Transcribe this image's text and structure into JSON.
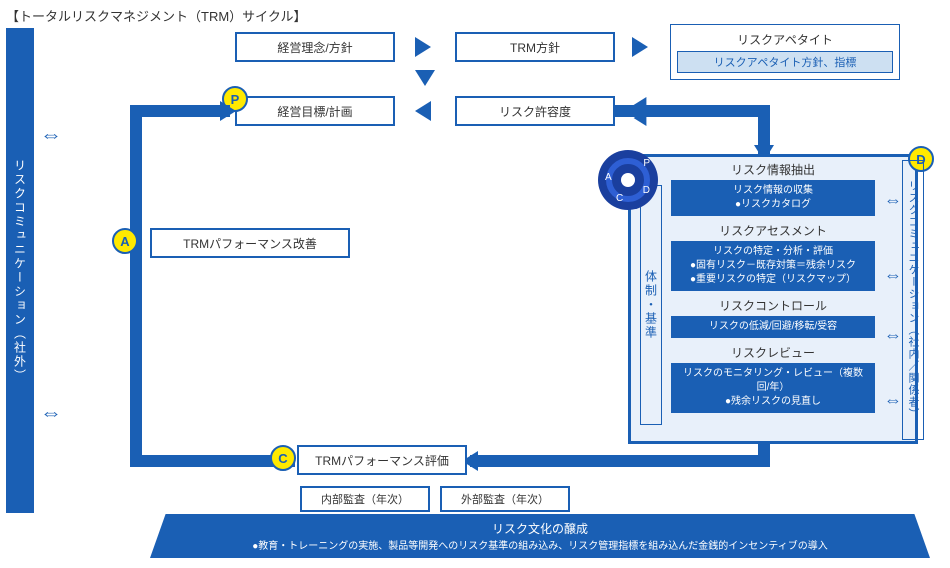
{
  "title": "【トータルリスクマネジメント（TRM）サイクル】",
  "leftBar": "リスクコミュニケーション（社外）",
  "rightBar": "リスクコミュニケーション（社内／関係者）",
  "taisei": "体制・基準",
  "top": {
    "rinenLabel": "経営理念/方針",
    "trmPolicy": "TRM方針",
    "appetiteTitle": "リスクアペタイト",
    "appetiteSub": "リスクアペタイト方針、指標",
    "keieiMokuhyo": "経営目標/計画",
    "riskAllowance": "リスク許容度"
  },
  "a": {
    "label": "A",
    "box": "TRMパフォーマンス改善"
  },
  "c": {
    "label": "C",
    "box": "TRMパフォーマンス評価"
  },
  "p": {
    "label": "P"
  },
  "d": {
    "label": "D"
  },
  "dSection": {
    "s1": {
      "title": "リスク情報抽出",
      "detail": "リスク情報の収集\n●リスクカタログ"
    },
    "s2": {
      "title": "リスクアセスメント",
      "detail": "リスクの特定・分析・評価\n●固有リスク－既存対策＝残余リスク\n●重要リスクの特定（リスクマップ）"
    },
    "s3": {
      "title": "リスクコントロール",
      "detail": "リスクの低減/回避/移転/受容"
    },
    "s4": {
      "title": "リスクレビュー",
      "detail": "リスクのモニタリング・レビュー（複数回/年）\n●残余リスクの見直し"
    }
  },
  "audit": {
    "internal": "内部監査（年次）",
    "external": "外部監査（年次）"
  },
  "bottom": {
    "title": "リスク文化の醸成",
    "detail": "●教育・トレーニングの実施、製品等開発へのリスク基準の組み込み、リスク管理指標を組み込んだ金銭的インセンティブの導入"
  },
  "colors": {
    "primary": "#1a5fb4",
    "light": "#e8f0fa",
    "yellow": "#ffe900"
  }
}
